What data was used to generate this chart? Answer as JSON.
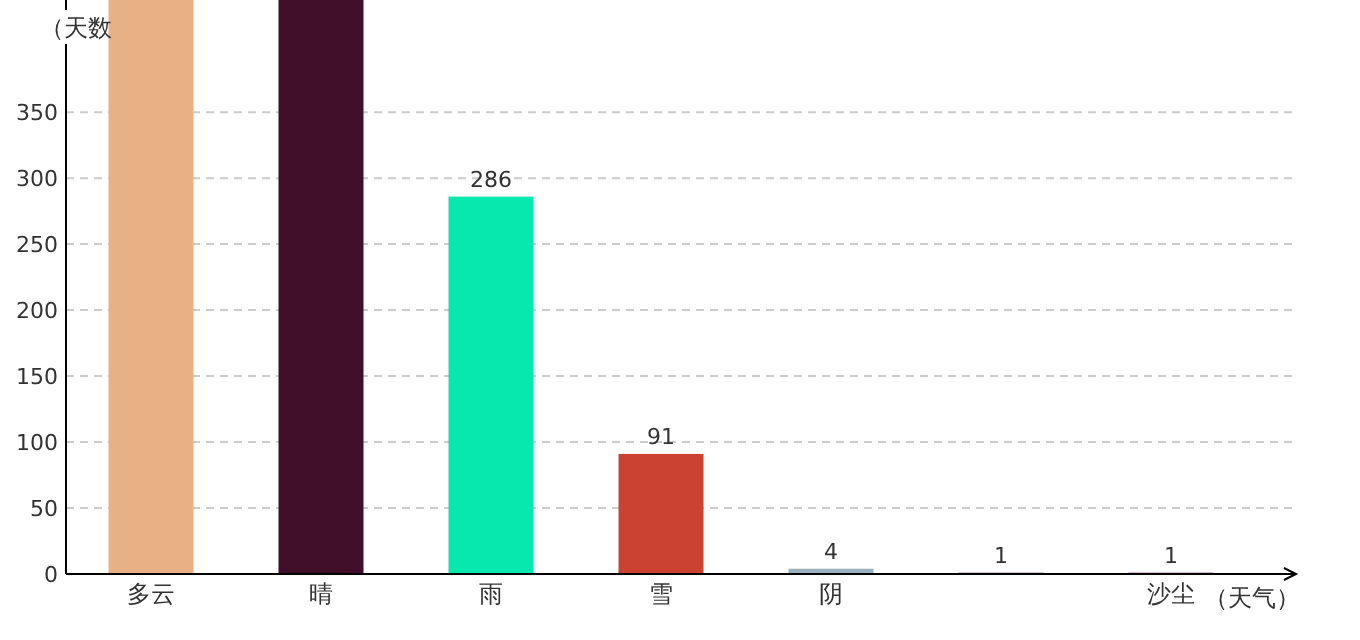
{
  "chart_data": {
    "type": "bar",
    "xlabel": "（天气）",
    "ylabel": "（天数",
    "categories": [
      "多云",
      "晴",
      "雨",
      "雪",
      "阴",
      null,
      "沙尘"
    ],
    "values": [
      435,
      435,
      286,
      91,
      4,
      1,
      1
    ],
    "value_labels": [
      null,
      null,
      "286",
      "91",
      "4",
      "1",
      "1"
    ],
    "colors": [
      "#e8b185",
      "#420f2a",
      "#07e8ae",
      "#cc4230",
      "#9ab2c0",
      "#6d4f6b",
      "#7b1f6c"
    ],
    "ylim": [
      0,
      435
    ],
    "yticks": [
      0,
      50,
      100,
      150,
      200,
      250,
      300,
      350
    ],
    "grid": "y"
  }
}
